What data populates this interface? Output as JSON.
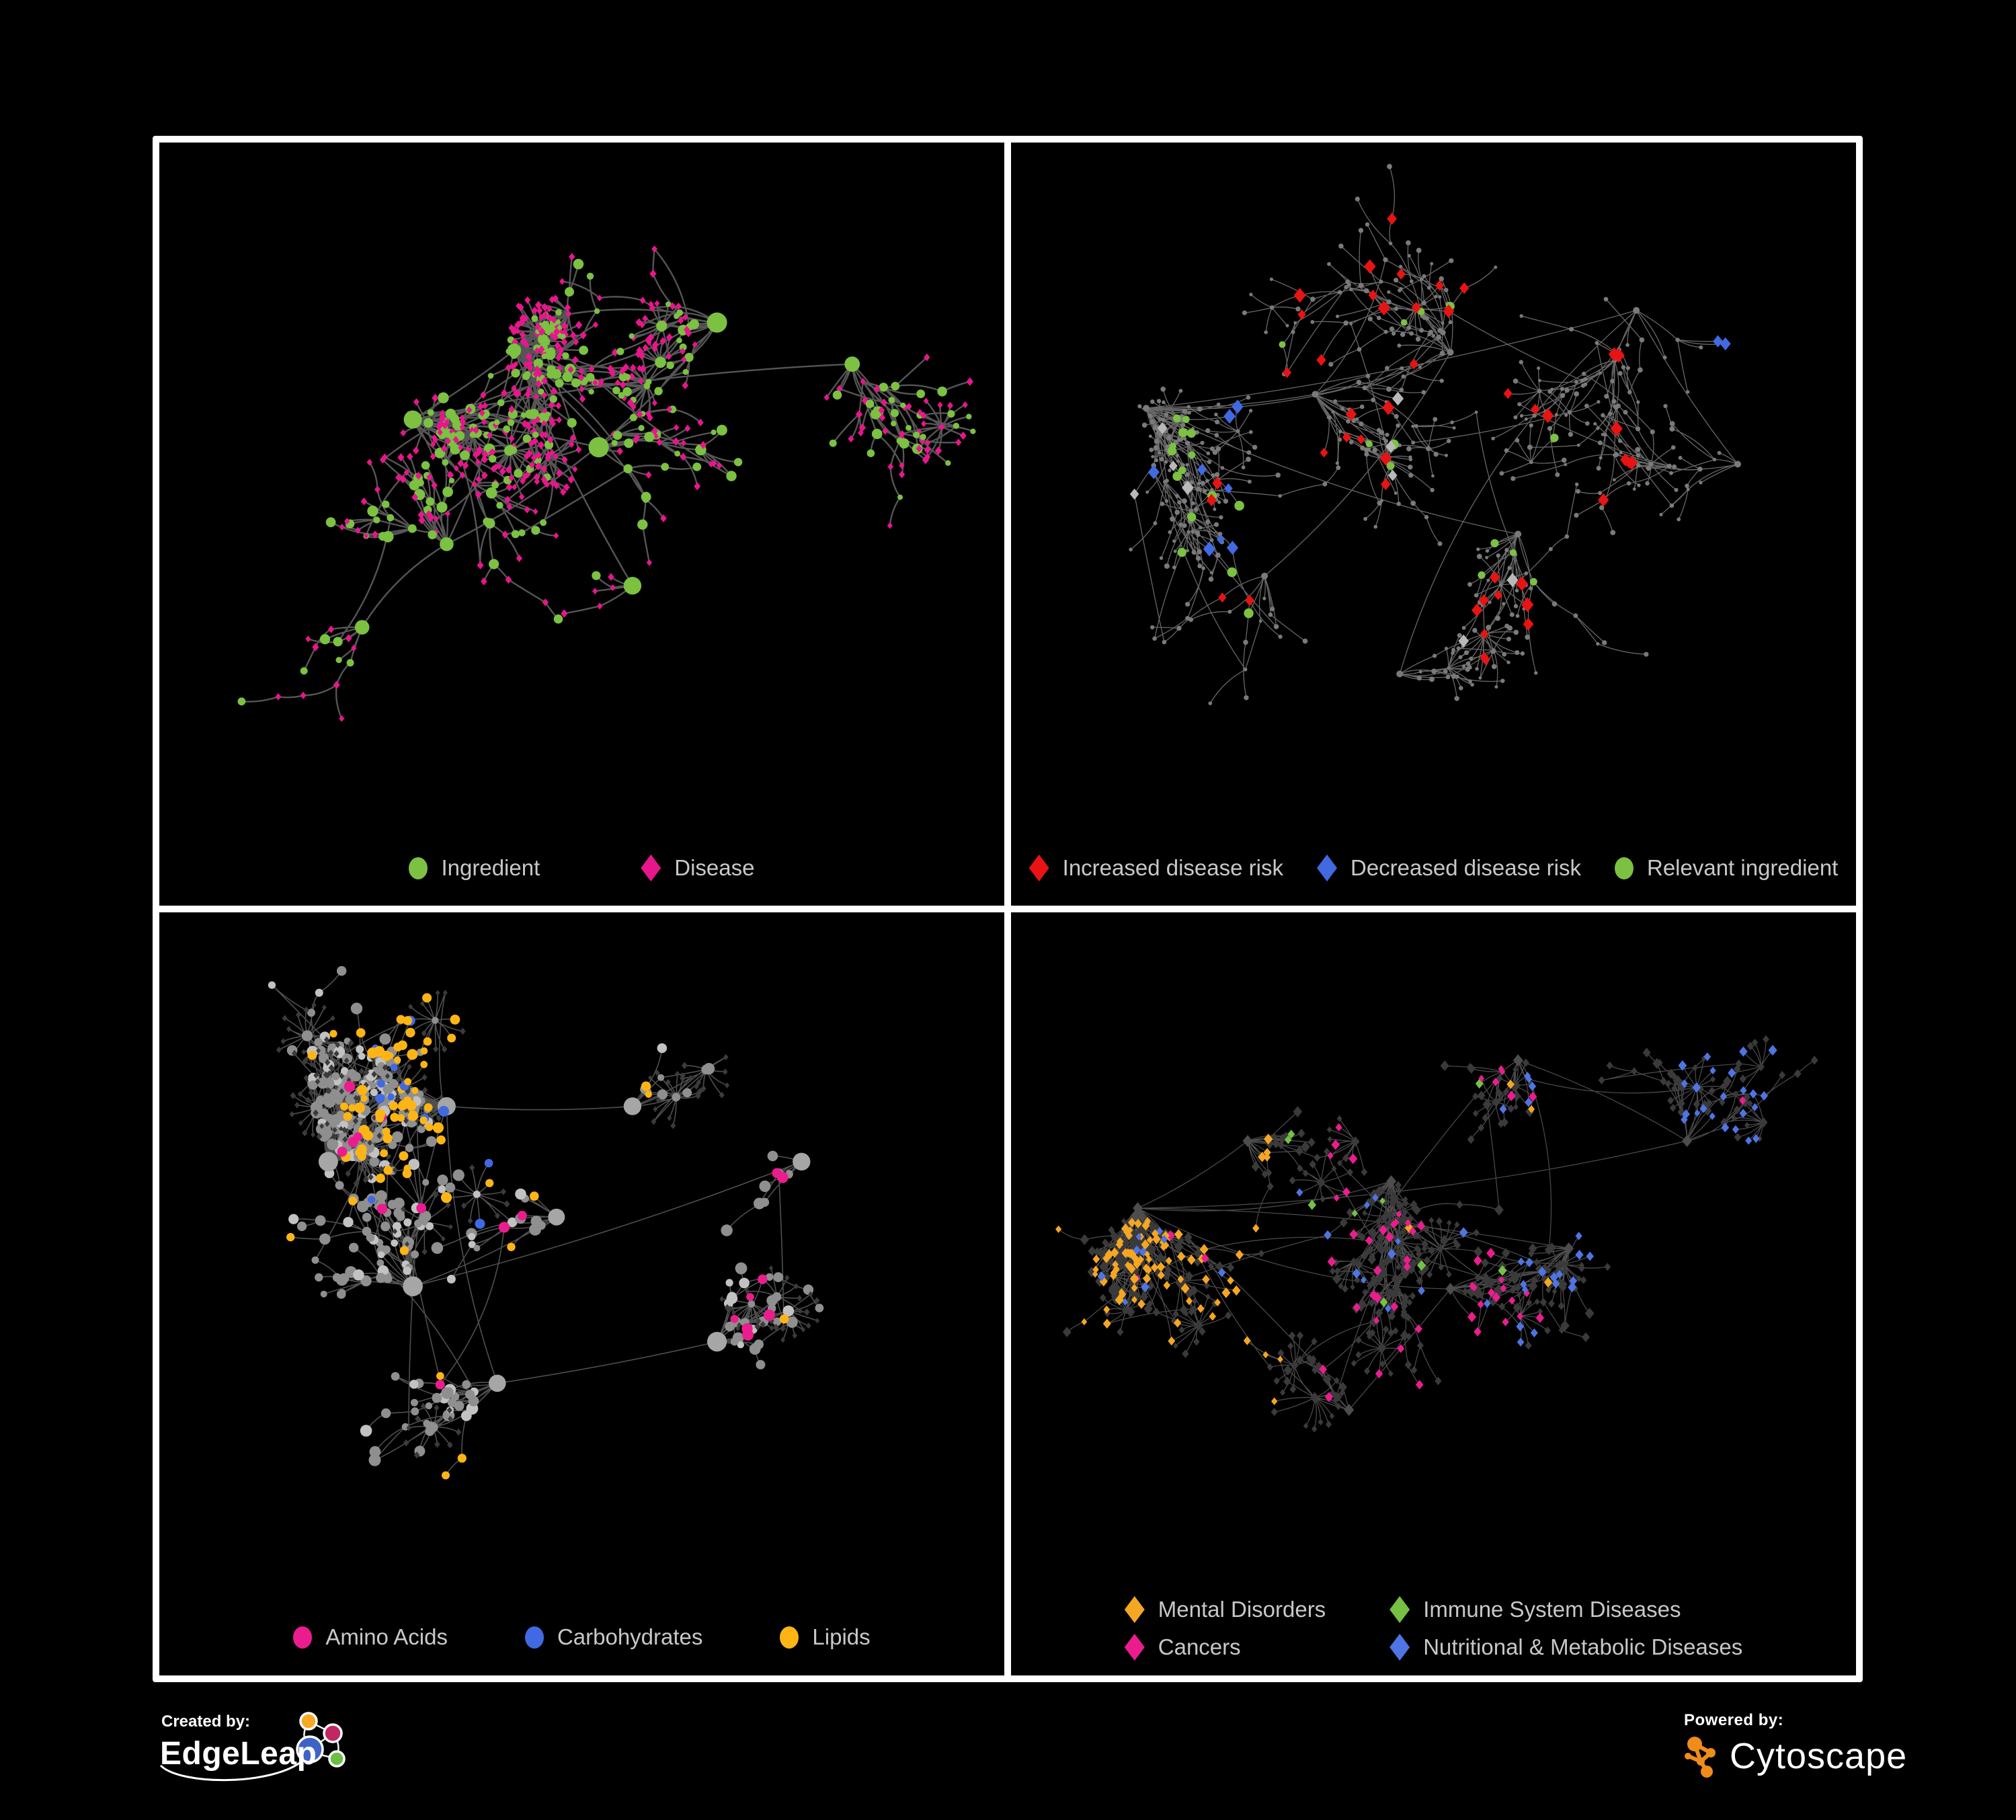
{
  "branding": {
    "created_by_label": "Created by:",
    "edgeleap_name": "EdgeLeap",
    "powered_by_label": "Powered by:",
    "cytoscape_name": "Cytoscape",
    "edgeleap_logo_colors": {
      "orange": "#F9A825",
      "magenta": "#C12765",
      "blue": "#3E63C6",
      "green": "#6CBE45"
    },
    "cytoscape_orange": "#EF8C1A"
  },
  "panels": [
    {
      "id": "ingredient-disease",
      "kind": "bipartite",
      "legend": {
        "items": [
          {
            "shape": "circle",
            "color": "#7CC142",
            "label": "Ingredient"
          },
          {
            "shape": "diamond",
            "color": "#E8168C",
            "label": "Disease"
          }
        ]
      },
      "network": {
        "seed": 7,
        "core": 430,
        "step": 47,
        "hub_bias": 2.0,
        "bursts": 16,
        "burst_min": 7,
        "burst_max": 15,
        "burst_dist": 36,
        "extra_links": 26,
        "area_h": 1030,
        "hubs": [
          [
            0.42,
            0.3
          ],
          [
            0.3,
            0.4
          ],
          [
            0.52,
            0.44
          ],
          [
            0.34,
            0.58
          ],
          [
            0.56,
            0.64
          ],
          [
            0.24,
            0.7
          ],
          [
            0.66,
            0.26
          ],
          [
            0.82,
            0.32
          ]
        ],
        "colors": {
          "ingredient": "#7CC142",
          "disease": "#E8168C"
        },
        "style": {
          "edge": "#646464",
          "ew": 2.4,
          "eo": 0.85
        },
        "marks": []
      }
    },
    {
      "id": "disease-risk",
      "kind": "risk",
      "legend": {
        "items": [
          {
            "shape": "diamond",
            "color": "#E81313",
            "label": "Increased disease risk"
          },
          {
            "shape": "diamond",
            "color": "#4169E1",
            "label": "Decreased disease risk"
          },
          {
            "shape": "circle",
            "color": "#7CC142",
            "label": "Relevant ingredient"
          }
        ]
      },
      "network": {
        "seed": 23,
        "core": 440,
        "step": 56,
        "hub_bias": 1.65,
        "bursts": 22,
        "burst_min": 5,
        "burst_max": 12,
        "burst_dist": 40,
        "extra_links": 30,
        "area_h": 1040,
        "hubs": [
          [
            0.16,
            0.38
          ],
          [
            0.36,
            0.36
          ],
          [
            0.52,
            0.3
          ],
          [
            0.3,
            0.62
          ],
          [
            0.6,
            0.56
          ],
          [
            0.74,
            0.24
          ],
          [
            0.86,
            0.46
          ],
          [
            0.46,
            0.76
          ]
        ],
        "colors": {
          "base": "#7A7A7A"
        },
        "style": {
          "edge": "#8A8A8A",
          "ew": 1.3,
          "eo": 0.75
        },
        "marks": [
          {
            "shape": "d",
            "color": "#E81313",
            "size": 9,
            "count": 40,
            "region": [
              0.22,
              0.78,
              0.08,
              0.72
            ]
          },
          {
            "shape": "d",
            "color": "#E81313",
            "size": 9,
            "count": 5,
            "region": [
              0.55,
              1,
              0.6,
              0.95
            ]
          },
          {
            "shape": "d",
            "color": "#4169E1",
            "size": 9,
            "count": 8,
            "region": [
              0.05,
              0.3,
              0.2,
              0.6
            ]
          },
          {
            "shape": "d",
            "color": "#4169E1",
            "size": 9,
            "count": 2,
            "region": [
              0.82,
              1,
              0.1,
              0.35
            ]
          },
          {
            "shape": "d",
            "color": "#B9B9B9",
            "size": 9,
            "count": 9,
            "region": [
              0.08,
              0.62,
              0.15,
              0.75
            ]
          },
          {
            "shape": "c",
            "color": "#7CC142",
            "size": 6,
            "count": 27,
            "region": [
              0.18,
              0.66,
              0.12,
              0.68
            ]
          }
        ]
      }
    },
    {
      "id": "nutrient-classes",
      "kind": "nutrients",
      "legend": {
        "items": [
          {
            "shape": "circle",
            "color": "#EB1D8E",
            "label": "Amino Acids"
          },
          {
            "shape": "circle",
            "color": "#4169E1",
            "label": "Carbohydrates"
          },
          {
            "shape": "circle",
            "color": "#FDB515",
            "label": "Lipids"
          }
        ]
      },
      "network": {
        "seed": 41,
        "core": 430,
        "step": 48,
        "hub_bias": 2.5,
        "bursts": 20,
        "burst_min": 7,
        "burst_max": 16,
        "burst_dist": 36,
        "extra_links": 34,
        "area_h": 1030,
        "hubs": [
          [
            0.2,
            0.36
          ],
          [
            0.34,
            0.28
          ],
          [
            0.3,
            0.54
          ],
          [
            0.47,
            0.44
          ],
          [
            0.56,
            0.28
          ],
          [
            0.4,
            0.68
          ],
          [
            0.66,
            0.62
          ],
          [
            0.76,
            0.36
          ]
        ],
        "colors": {
          "leaf": "#3B3B3B",
          "core1": "#8F8F8F",
          "core2": "#C2C2C2",
          "hub": "#A6A6A6"
        },
        "style": {
          "edge": "#9E9E9E",
          "ew": 1.6,
          "eo": 0.5
        },
        "marks": [
          {
            "shape": "c",
            "color": "#FDB515",
            "size": 6.5,
            "count": 55,
            "region": [
              0.22,
              0.58,
              0.02,
              0.42
            ]
          },
          {
            "shape": "c",
            "color": "#FDB515",
            "size": 6.5,
            "count": 16,
            "region": [
              0,
              1,
              0,
              1
            ]
          },
          {
            "shape": "c",
            "color": "#4169E1",
            "size": 6.5,
            "count": 12,
            "region": [
              0.25,
              0.55,
              0.05,
              0.45
            ]
          },
          {
            "shape": "c",
            "color": "#EB1D8E",
            "size": 7,
            "count": 18,
            "region": [
              0,
              1,
              0,
              1
            ]
          }
        ]
      }
    },
    {
      "id": "disease-classes",
      "kind": "classes",
      "legend": {
        "items": [
          {
            "shape": "diamond",
            "color": "#F5A623",
            "label": "Mental Disorders"
          },
          {
            "shape": "diamond",
            "color": "#76C043",
            "label": "Immune System Diseases"
          },
          {
            "shape": "diamond",
            "color": "#EB1D8E",
            "label": "Cancers"
          },
          {
            "shape": "diamond",
            "color": "#4F74E3",
            "label": "Nutritional & Metabolic Diseases"
          }
        ]
      },
      "network": {
        "seed": 63,
        "core": 500,
        "step": 44,
        "hub_bias": 2.5,
        "bursts": 24,
        "burst_min": 8,
        "burst_max": 16,
        "burst_dist": 34,
        "extra_links": 40,
        "area_h": 1000,
        "hubs": [
          [
            0.15,
            0.44
          ],
          [
            0.28,
            0.34
          ],
          [
            0.45,
            0.4
          ],
          [
            0.52,
            0.56
          ],
          [
            0.66,
            0.5
          ],
          [
            0.8,
            0.34
          ],
          [
            0.6,
            0.22
          ],
          [
            0.4,
            0.74
          ]
        ],
        "colors": {
          "base": "#3A3A3A",
          "hub": "#4D4D4D"
        },
        "style": {
          "edge": "#8C8C8C",
          "ew": 1.2,
          "eo": 0.55
        },
        "marks": [
          {
            "shape": "d",
            "color": "#F5A623",
            "size": 6.5,
            "count": 88,
            "region": [
              0,
              0.32,
              0.15,
              0.75
            ]
          },
          {
            "shape": "d",
            "color": "#F5A623",
            "size": 6.5,
            "count": 8,
            "region": [
              0,
              1,
              0,
              1
            ]
          },
          {
            "shape": "d",
            "color": "#EB1D8E",
            "size": 6.5,
            "count": 50,
            "region": [
              0.34,
              0.62,
              0.22,
              0.78
            ]
          },
          {
            "shape": "d",
            "color": "#EB1D8E",
            "size": 6.5,
            "count": 8,
            "region": [
              0,
              1,
              0,
              1
            ]
          },
          {
            "shape": "d",
            "color": "#4F74E3",
            "size": 6.5,
            "count": 42,
            "region": [
              0.6,
              1,
              0.1,
              0.8
            ]
          },
          {
            "shape": "d",
            "color": "#4F74E3",
            "size": 6.5,
            "count": 24,
            "region": [
              0,
              1,
              0,
              1
            ]
          },
          {
            "shape": "d",
            "color": "#76C043",
            "size": 6.5,
            "count": 9,
            "region": [
              0.2,
              0.8,
              0.1,
              0.8
            ]
          }
        ]
      }
    }
  ]
}
